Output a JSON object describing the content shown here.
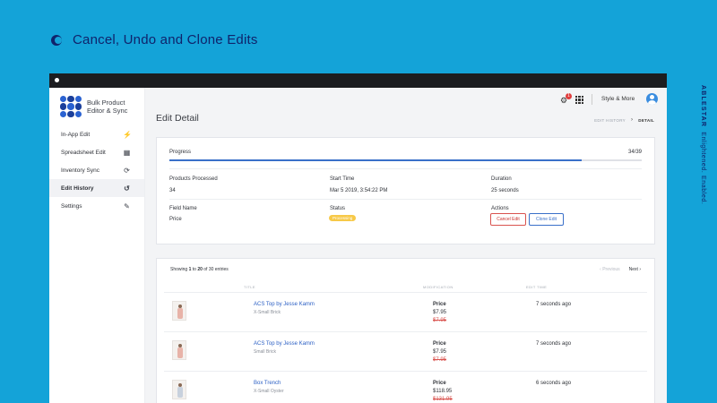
{
  "hero": {
    "title": "Cancel, Undo and Clone Edits",
    "icon": "half-moon-icon"
  },
  "side_brand": {
    "name": "ABLESTAR",
    "tagline": "Enlightened. Enabled."
  },
  "app": {
    "name": "Bulk Product Editor & Sync",
    "nav": [
      {
        "label": "In-App Edit",
        "icon": "⚡"
      },
      {
        "label": "Spreadsheet Edit",
        "icon": "▦"
      },
      {
        "label": "Inventory Sync",
        "icon": "⟳"
      },
      {
        "label": "Edit History",
        "icon": "↺",
        "active": true
      },
      {
        "label": "Settings",
        "icon": "✎"
      }
    ]
  },
  "topbar": {
    "notification_count": "1",
    "store_name": "Style & More"
  },
  "page": {
    "title": "Edit Detail",
    "breadcrumb": {
      "parent": "EDIT HISTORY",
      "separator": "›",
      "current": "DETAIL"
    }
  },
  "detail": {
    "progress_label": "Progress",
    "progress_count": "34/39",
    "progress_fraction": 0.872,
    "products_processed_label": "Products Processed",
    "products_processed": "34",
    "start_time_label": "Start Time",
    "start_time": "Mar 5 2019, 3:54:22 PM",
    "duration_label": "Duration",
    "duration": "25 seconds",
    "field_name_label": "Field Name",
    "field_name": "Price",
    "status_label": "Status",
    "status": "Processing",
    "actions_label": "Actions",
    "cancel_edit": "Cancel Edit",
    "clone_edit": "Clone Edit"
  },
  "table": {
    "showing_prefix": "Showing",
    "showing_from": "1",
    "showing_to_word": "to",
    "showing_to": "20",
    "showing_suffix": "of 30 entries",
    "prev": "‹ Previous",
    "next": "Next ›",
    "headers": {
      "title": "TITLE",
      "modification": "MODIFICATION",
      "edit_time": "EDIT TIME"
    },
    "rows": [
      {
        "title": "ACS Top by Jesse Kamm",
        "variant": "X-Small Brick",
        "field": "Price",
        "new_value": "$7.95",
        "old_value": "$7.95",
        "edit_time": "7 seconds ago"
      },
      {
        "title": "ACS Top by Jesse Kamm",
        "variant": "Small Brick",
        "field": "Price",
        "new_value": "$7.95",
        "old_value": "$7.95",
        "edit_time": "7 seconds ago"
      },
      {
        "title": "Box Trench",
        "variant": "X-Small Oyster",
        "field": "Price",
        "new_value": "$118.95",
        "old_value": "$131.95",
        "edit_time": "6 seconds ago"
      }
    ]
  }
}
